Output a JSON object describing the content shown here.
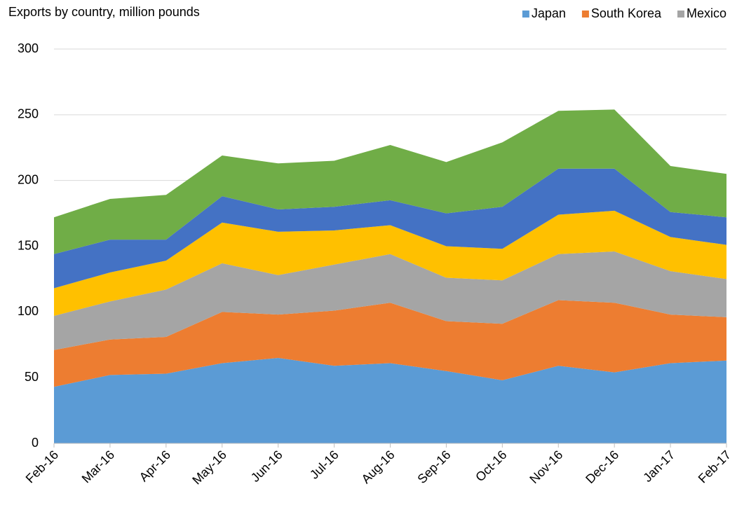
{
  "chart_data": {
    "type": "stacked_area",
    "title": "Exports by country, million pounds",
    "categories": [
      "Feb-16",
      "Mar-16",
      "Apr-16",
      "May-16",
      "Jun-16",
      "Jul-16",
      "Aug-16",
      "Sep-16",
      "Oct-16",
      "Nov-16",
      "Dec-16",
      "Jan-17",
      "Feb-17"
    ],
    "series": [
      {
        "name": "Japan",
        "color": "#5b9bd5",
        "values": [
          43,
          52,
          53,
          61,
          65,
          59,
          61,
          55,
          48,
          59,
          54,
          61,
          63
        ]
      },
      {
        "name": "South Korea",
        "color": "#ed7d31",
        "values": [
          28,
          27,
          28,
          39,
          33,
          42,
          46,
          38,
          43,
          50,
          53,
          37,
          33
        ]
      },
      {
        "name": "Mexico",
        "color": "#a5a5a5",
        "values": [
          26,
          29,
          36,
          37,
          30,
          35,
          37,
          33,
          33,
          35,
          39,
          33,
          29
        ]
      },
      {
        "color": "#ffc000",
        "values": [
          21,
          22,
          22,
          31,
          33,
          26,
          22,
          24,
          24,
          30,
          31,
          26,
          26
        ]
      },
      {
        "color": "#4472c4",
        "values": [
          26,
          25,
          16,
          20,
          17,
          18,
          19,
          25,
          32,
          35,
          32,
          19,
          21
        ]
      },
      {
        "color": "#70ad47",
        "values": [
          28,
          31,
          34,
          31,
          35,
          35,
          42,
          39,
          49,
          44,
          45,
          35,
          33
        ]
      }
    ],
    "ylim": [
      0,
      300
    ],
    "yticks": [
      0,
      50,
      100,
      150,
      200,
      250,
      300
    ],
    "grid": true,
    "legend": "top-right"
  }
}
